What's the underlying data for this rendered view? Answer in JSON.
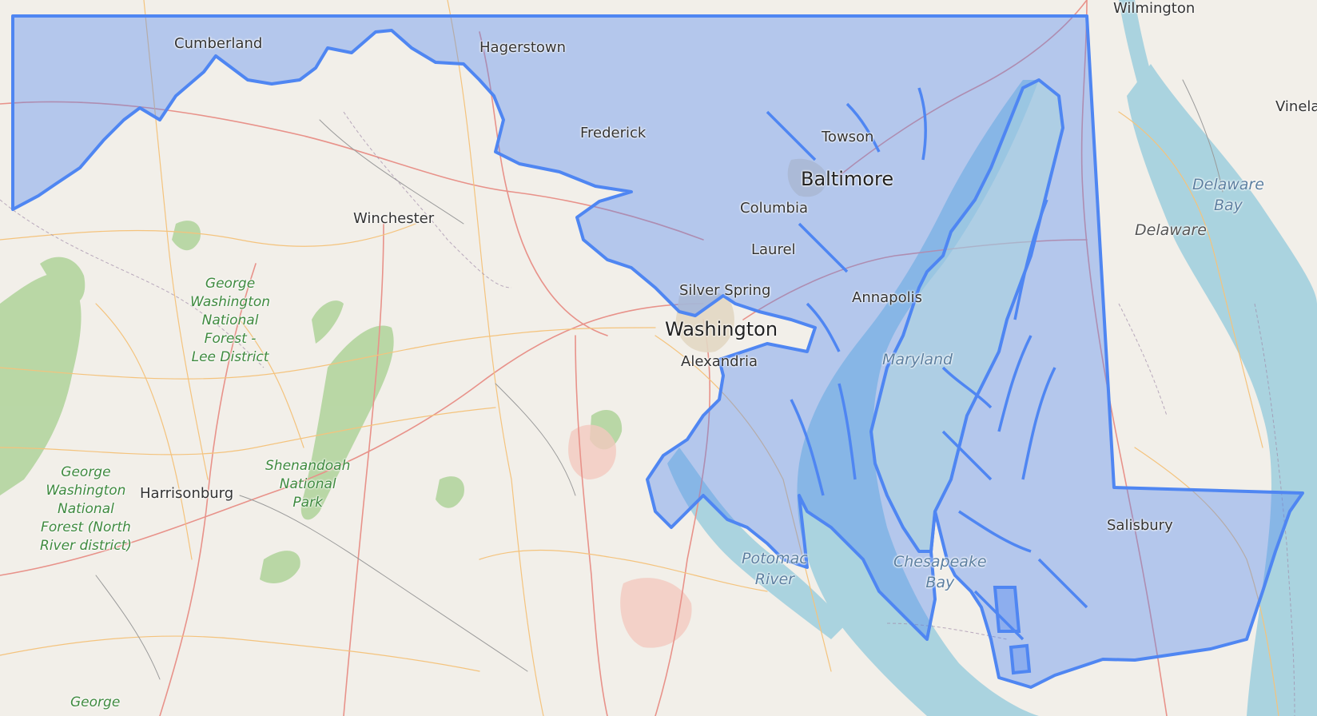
{
  "map": {
    "highlight_color": "#4f86f2",
    "highlight_fill": "#4f86f2",
    "water_color": "#aad3df",
    "land_color": "#f2efe9",
    "forest_color": "#a6cf8f"
  },
  "labels": {
    "wilmington": "Wilmington",
    "vineland": "Vinela",
    "cumberland": "Cumberland",
    "hagerstown": "Hagerstown",
    "frederick": "Frederick",
    "towson": "Towson",
    "baltimore": "Baltimore",
    "columbia": "Columbia",
    "laurel": "Laurel",
    "silver_spring": "Silver Spring",
    "annapolis": "Annapolis",
    "winchester": "Winchester",
    "washington": "Washington",
    "alexandria": "Alexandria",
    "maryland": "Maryland",
    "harrisonburg": "Harrisonburg",
    "salisbury": "Salisbury",
    "delaware": "Delaware",
    "delaware_bay": "Delaware\nBay",
    "chesapeake_bay": "Chesapeake\nBay",
    "potomac_river": "Potomac\nRiver",
    "gw_forest_lee": "George\nWashington\nNational\nForest -\nLee District",
    "gw_forest_north": "George\nWashington\nNational\nForest (North\nRiver district)",
    "shenandoah": "Shenandoah\nNational\nPark",
    "george_bottom": "George"
  }
}
